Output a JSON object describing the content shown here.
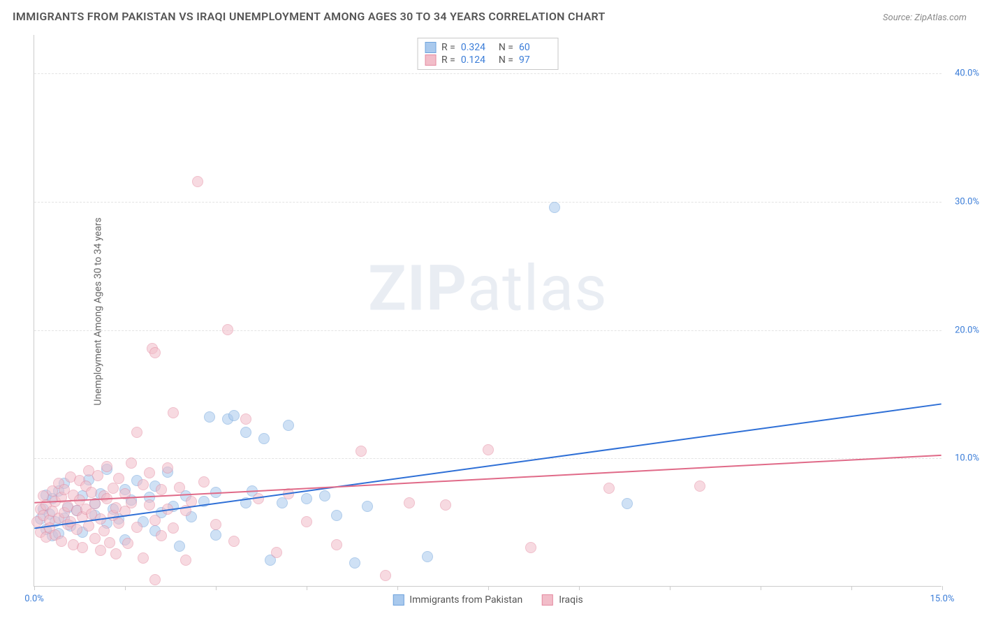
{
  "title": "IMMIGRANTS FROM PAKISTAN VS IRAQI UNEMPLOYMENT AMONG AGES 30 TO 34 YEARS CORRELATION CHART",
  "source": "Source: ZipAtlas.com",
  "y_axis_label": "Unemployment Among Ages 30 to 34 years",
  "watermark_bold": "ZIP",
  "watermark_light": "atlas",
  "chart": {
    "type": "scatter",
    "xlim": [
      0,
      15
    ],
    "ylim": [
      0,
      43
    ],
    "x_ticks": [
      0,
      1.5,
      3,
      4.5,
      6,
      7.5,
      9,
      10.5,
      12,
      13.5,
      15
    ],
    "x_tick_labels": {
      "0": "0.0%",
      "15": "15.0%"
    },
    "y_grid": [
      10,
      20,
      30,
      40
    ],
    "y_tick_labels": {
      "10": "10.0%",
      "20": "20.0%",
      "30": "30.0%",
      "40": "40.0%"
    },
    "background_color": "#ffffff",
    "grid_color": "#e3e3e3",
    "axis_color": "#cccccc",
    "tick_label_color": "#3b7dd8",
    "series": [
      {
        "name": "Immigrants from Pakistan",
        "color_fill": "#a9c9ed",
        "color_stroke": "#6fa3dc",
        "r": 0.324,
        "n": 60,
        "trend": {
          "x1": 0,
          "y1": 4.5,
          "x2": 15,
          "y2": 14.2,
          "color": "#2e6fd6",
          "width": 2
        },
        "points": [
          [
            0.1,
            5.2
          ],
          [
            0.15,
            6.0
          ],
          [
            0.2,
            4.4
          ],
          [
            0.2,
            7.1
          ],
          [
            0.25,
            5.6
          ],
          [
            0.3,
            6.8
          ],
          [
            0.3,
            3.9
          ],
          [
            0.35,
            5.0
          ],
          [
            0.4,
            7.4
          ],
          [
            0.4,
            4.1
          ],
          [
            0.5,
            8.0
          ],
          [
            0.5,
            5.3
          ],
          [
            0.55,
            6.1
          ],
          [
            0.6,
            4.7
          ],
          [
            0.7,
            5.9
          ],
          [
            0.8,
            7.0
          ],
          [
            0.8,
            4.2
          ],
          [
            0.9,
            8.3
          ],
          [
            1.0,
            5.5
          ],
          [
            1.0,
            6.4
          ],
          [
            1.1,
            7.2
          ],
          [
            1.2,
            4.9
          ],
          [
            1.2,
            9.1
          ],
          [
            1.3,
            6.0
          ],
          [
            1.4,
            5.2
          ],
          [
            1.5,
            7.5
          ],
          [
            1.5,
            3.6
          ],
          [
            1.6,
            6.7
          ],
          [
            1.7,
            8.2
          ],
          [
            1.8,
            5.0
          ],
          [
            1.9,
            6.9
          ],
          [
            2.0,
            4.3
          ],
          [
            2.0,
            7.8
          ],
          [
            2.1,
            5.7
          ],
          [
            2.2,
            8.9
          ],
          [
            2.3,
            6.2
          ],
          [
            2.4,
            3.1
          ],
          [
            2.5,
            7.0
          ],
          [
            2.6,
            5.4
          ],
          [
            2.8,
            6.6
          ],
          [
            3.0,
            4.0
          ],
          [
            3.0,
            7.3
          ],
          [
            3.2,
            13.0
          ],
          [
            3.3,
            13.3
          ],
          [
            3.5,
            12.0
          ],
          [
            3.6,
            7.4
          ],
          [
            3.8,
            11.5
          ],
          [
            3.9,
            2.0
          ],
          [
            4.1,
            6.5
          ],
          [
            4.2,
            12.5
          ],
          [
            4.5,
            6.8
          ],
          [
            4.8,
            7.0
          ],
          [
            5.0,
            5.5
          ],
          [
            5.3,
            1.8
          ],
          [
            5.5,
            6.2
          ],
          [
            6.5,
            2.3
          ],
          [
            8.6,
            29.5
          ],
          [
            9.8,
            6.4
          ],
          [
            3.5,
            6.5
          ],
          [
            2.9,
            13.2
          ]
        ]
      },
      {
        "name": "Iraqis",
        "color_fill": "#f2bdc9",
        "color_stroke": "#e48ba1",
        "r": 0.124,
        "n": 97,
        "trend": {
          "x1": 0,
          "y1": 6.5,
          "x2": 15,
          "y2": 10.2,
          "color": "#e06a88",
          "width": 2
        },
        "points": [
          [
            0.05,
            5.0
          ],
          [
            0.1,
            6.0
          ],
          [
            0.1,
            4.2
          ],
          [
            0.15,
            5.5
          ],
          [
            0.15,
            7.0
          ],
          [
            0.2,
            3.8
          ],
          [
            0.2,
            6.3
          ],
          [
            0.25,
            5.1
          ],
          [
            0.25,
            4.5
          ],
          [
            0.3,
            7.4
          ],
          [
            0.3,
            5.8
          ],
          [
            0.35,
            6.6
          ],
          [
            0.35,
            4.0
          ],
          [
            0.4,
            8.0
          ],
          [
            0.4,
            5.3
          ],
          [
            0.45,
            6.9
          ],
          [
            0.45,
            3.5
          ],
          [
            0.5,
            5.7
          ],
          [
            0.5,
            7.5
          ],
          [
            0.55,
            4.8
          ],
          [
            0.55,
            6.2
          ],
          [
            0.6,
            8.5
          ],
          [
            0.6,
            5.0
          ],
          [
            0.65,
            3.2
          ],
          [
            0.65,
            7.1
          ],
          [
            0.7,
            5.9
          ],
          [
            0.7,
            4.4
          ],
          [
            0.75,
            6.7
          ],
          [
            0.75,
            8.2
          ],
          [
            0.8,
            5.4
          ],
          [
            0.8,
            3.0
          ],
          [
            0.85,
            7.8
          ],
          [
            0.85,
            6.0
          ],
          [
            0.9,
            4.7
          ],
          [
            0.9,
            9.0
          ],
          [
            0.95,
            5.6
          ],
          [
            0.95,
            7.3
          ],
          [
            1.0,
            3.7
          ],
          [
            1.0,
            6.4
          ],
          [
            1.05,
            8.6
          ],
          [
            1.1,
            5.2
          ],
          [
            1.1,
            2.8
          ],
          [
            1.15,
            7.0
          ],
          [
            1.15,
            4.3
          ],
          [
            1.2,
            6.8
          ],
          [
            1.2,
            9.3
          ],
          [
            1.25,
            3.4
          ],
          [
            1.3,
            7.6
          ],
          [
            1.3,
            5.5
          ],
          [
            1.35,
            6.1
          ],
          [
            1.35,
            2.5
          ],
          [
            1.4,
            8.4
          ],
          [
            1.4,
            4.9
          ],
          [
            1.5,
            7.2
          ],
          [
            1.5,
            5.8
          ],
          [
            1.55,
            3.3
          ],
          [
            1.6,
            6.5
          ],
          [
            1.6,
            9.6
          ],
          [
            1.7,
            12.0
          ],
          [
            1.7,
            4.6
          ],
          [
            1.8,
            7.9
          ],
          [
            1.8,
            2.2
          ],
          [
            1.9,
            6.3
          ],
          [
            1.9,
            8.8
          ],
          [
            1.95,
            18.5
          ],
          [
            2.0,
            5.1
          ],
          [
            2.0,
            18.2
          ],
          [
            2.1,
            7.5
          ],
          [
            2.1,
            3.9
          ],
          [
            2.2,
            6.0
          ],
          [
            2.2,
            9.2
          ],
          [
            2.3,
            4.5
          ],
          [
            2.3,
            13.5
          ],
          [
            2.4,
            7.7
          ],
          [
            2.5,
            5.9
          ],
          [
            2.5,
            2.0
          ],
          [
            2.6,
            6.6
          ],
          [
            2.7,
            31.5
          ],
          [
            2.8,
            8.1
          ],
          [
            3.0,
            4.8
          ],
          [
            3.2,
            20.0
          ],
          [
            3.3,
            3.5
          ],
          [
            3.5,
            13.0
          ],
          [
            3.7,
            6.8
          ],
          [
            4.0,
            2.6
          ],
          [
            4.2,
            7.2
          ],
          [
            4.5,
            5.0
          ],
          [
            5.0,
            3.2
          ],
          [
            5.4,
            10.5
          ],
          [
            5.8,
            0.8
          ],
          [
            6.2,
            6.5
          ],
          [
            6.8,
            6.3
          ],
          [
            7.5,
            10.6
          ],
          [
            8.2,
            3.0
          ],
          [
            9.5,
            7.6
          ],
          [
            11.0,
            7.8
          ],
          [
            2.0,
            0.5
          ]
        ]
      }
    ]
  },
  "legend_labels": {
    "r_label": "R =",
    "n_label": "N ="
  }
}
